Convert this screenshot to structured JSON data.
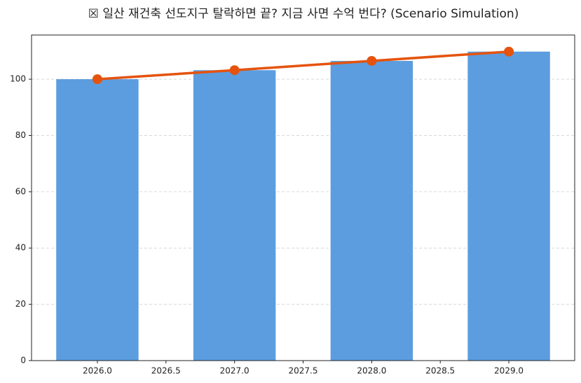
{
  "chart_data": {
    "type": "combo",
    "title": "☒ 일산 재건축 선도지구 탈락하면 끝? 지금 사면 수억 번다? (Scenario Simulation)",
    "x": [
      2026,
      2027,
      2028,
      2029
    ],
    "series": [
      {
        "type": "bar",
        "color": "#5c9ddf",
        "values": [
          100,
          103.2,
          106.5,
          109.8
        ]
      },
      {
        "type": "line",
        "color": "#e5530e",
        "values": [
          100,
          103.2,
          106.5,
          109.8
        ]
      }
    ],
    "xlim": [
      2025.52,
      2029.48
    ],
    "xticks": [
      {
        "value": 2026,
        "label": "2026.0"
      },
      {
        "value": 2026.5,
        "label": "2026.5"
      },
      {
        "value": 2027,
        "label": "2027.0"
      },
      {
        "value": 2027.5,
        "label": "2027.5"
      },
      {
        "value": 2028,
        "label": "2028.0"
      },
      {
        "value": 2028.5,
        "label": "2028.5"
      },
      {
        "value": 2029,
        "label": "2029.0"
      }
    ],
    "ylim": [
      0,
      115.7
    ],
    "yticks": [
      0,
      20,
      40,
      60,
      80,
      100
    ],
    "grid": true
  }
}
